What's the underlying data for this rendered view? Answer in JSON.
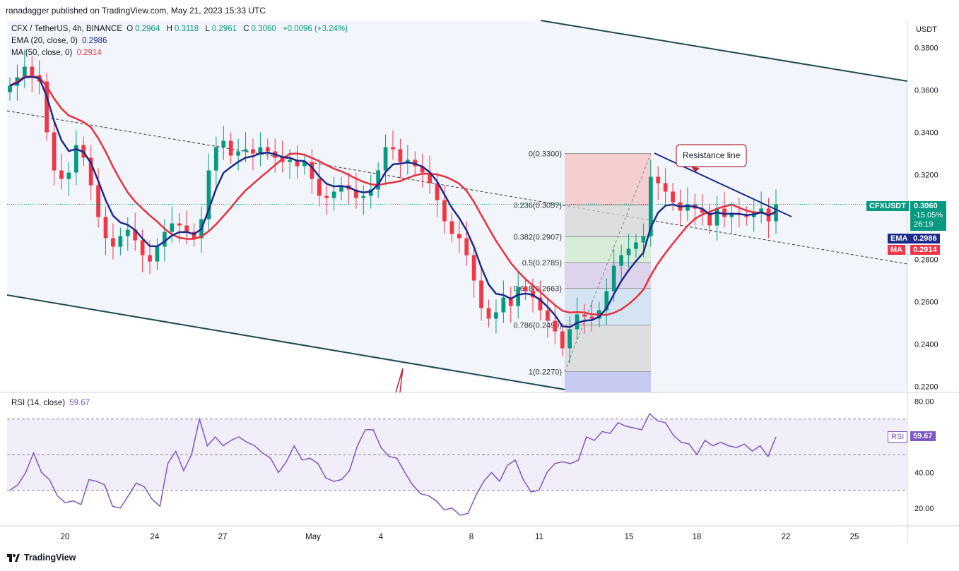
{
  "publisher": "ranadagger published on TradingView.com, May 21, 2023 15:33 UTC",
  "legend": {
    "symbol": "CFX / TetherUS, 4h, BINANCE",
    "o_label": "O",
    "o_value": "0.2964",
    "h_label": "H",
    "h_value": "0.3118",
    "l_label": "L",
    "l_value": "0.2961",
    "c_label": "C",
    "c_value": "0.3060",
    "change": "+0.0096 (+3.24%)",
    "ema_label": "EMA (20, close, 0)",
    "ema_value": "0.2986",
    "ma_label": "MA (50, close, 0)",
    "ma_value": "0.2914",
    "rsi_label": "RSI (14, close)",
    "rsi_value": "59.67"
  },
  "price_axis": {
    "unit": "USDT",
    "ticks": [
      "0.3800",
      "0.3600",
      "0.3400",
      "0.3200",
      "0.2800",
      "0.2600",
      "0.2400",
      "0.2200"
    ]
  },
  "rsi_axis": {
    "ticks": [
      "80.00",
      "40.00",
      "20.00"
    ]
  },
  "time_axis": {
    "ticks": [
      "20",
      "24",
      "27",
      "May",
      "4",
      "8",
      "11",
      "15",
      "18",
      "22",
      "25"
    ]
  },
  "tags": {
    "symbol_tag": "CFXUSDT",
    "price": "0.3060",
    "change_pct": "-15.05%",
    "countdown": "26:19",
    "ema_tag": "EMA",
    "ema_price": "0.2986",
    "ma_tag": "MA",
    "ma_price": "0.2914",
    "rsi_tag": "RSI",
    "rsi_price": "59.67"
  },
  "fib_levels": [
    {
      "label": "0(0.3300)",
      "ratio": 0,
      "price": 0.33
    },
    {
      "label": "0.236(0.3057)",
      "ratio": 0.236,
      "price": 0.3057
    },
    {
      "label": "0.382(0.2907)",
      "ratio": 0.382,
      "price": 0.2907
    },
    {
      "label": "0.5(0.2785)",
      "ratio": 0.5,
      "price": 0.2785
    },
    {
      "label": "0.618(0.2663)",
      "ratio": 0.618,
      "price": 0.2663
    },
    {
      "label": "0.786(0.2490)",
      "ratio": 0.786,
      "price": 0.249
    },
    {
      "label": "1(0.2270)",
      "ratio": 1,
      "price": 0.227
    }
  ],
  "annotation": {
    "text": "Resistance line"
  },
  "footer": {
    "brand": "TradingView"
  },
  "colors": {
    "up": "#089981",
    "down": "#f23645",
    "ema": "#1c2a8a",
    "ma": "#e8313f",
    "channel": "#1f4a4f",
    "rsi": "#7e57c2"
  },
  "chart_data": {
    "type": "candlestick",
    "title": "CFX / TetherUS, 4h, BINANCE",
    "ylabel": "USDT",
    "ylim": [
      0.22,
      0.39
    ],
    "x_ticks": [
      "20",
      "24",
      "27",
      "May",
      "4",
      "8",
      "11",
      "15",
      "18",
      "22",
      "25"
    ],
    "close_approx": [
      0.362,
      0.366,
      0.371,
      0.367,
      0.364,
      0.34,
      0.322,
      0.318,
      0.321,
      0.334,
      0.328,
      0.315,
      0.3,
      0.29,
      0.286,
      0.291,
      0.294,
      0.289,
      0.282,
      0.279,
      0.286,
      0.293,
      0.297,
      0.296,
      0.293,
      0.29,
      0.299,
      0.322,
      0.333,
      0.336,
      0.329,
      0.331,
      0.332,
      0.33,
      0.333,
      0.331,
      0.328,
      0.326,
      0.327,
      0.324,
      0.326,
      0.318,
      0.31,
      0.309,
      0.312,
      0.315,
      0.313,
      0.309,
      0.31,
      0.313,
      0.322,
      0.333,
      0.332,
      0.326,
      0.327,
      0.324,
      0.321,
      0.316,
      0.308,
      0.298,
      0.292,
      0.29,
      0.282,
      0.27,
      0.257,
      0.252,
      0.255,
      0.262,
      0.258,
      0.267,
      0.265,
      0.262,
      0.256,
      0.251,
      0.246,
      0.238,
      0.247,
      0.254,
      0.253,
      0.252,
      0.256,
      0.265,
      0.277,
      0.282,
      0.285,
      0.288,
      0.291,
      0.319,
      0.316,
      0.312,
      0.307,
      0.303,
      0.306,
      0.304,
      0.302,
      0.296,
      0.304,
      0.3,
      0.302,
      0.301,
      0.3,
      0.302,
      0.304,
      0.298,
      0.306
    ],
    "series": [
      {
        "name": "EMA (20, close, 0)",
        "last": 0.2986
      },
      {
        "name": "MA (50, close, 0)",
        "last": 0.2914
      },
      {
        "name": "RSI (14, close)",
        "last": 59.67,
        "values": [
          30,
          33,
          40,
          51,
          40,
          36,
          27,
          23,
          24,
          22,
          36,
          35,
          33,
          21,
          20,
          27,
          34,
          32,
          25,
          21,
          45,
          52,
          41,
          50,
          70,
          55,
          60,
          55,
          58,
          60,
          57,
          55,
          51,
          48,
          40,
          46,
          55,
          47,
          48,
          45,
          37,
          35,
          36,
          41,
          55,
          64,
          64,
          54,
          49,
          48,
          40,
          33,
          28,
          27,
          24,
          19,
          20,
          16,
          17,
          27,
          35,
          40,
          35,
          44,
          47,
          36,
          29,
          30,
          40,
          45,
          46,
          45,
          47,
          60,
          58,
          63,
          62,
          68,
          66,
          65,
          64,
          73,
          69,
          68,
          61,
          57,
          56,
          50,
          58,
          55,
          57,
          55,
          54,
          56,
          52,
          55,
          49,
          60
        ]
      }
    ],
    "rsi_ylim": [
      10,
      85
    ],
    "rsi_bands": [
      70,
      30
    ]
  }
}
